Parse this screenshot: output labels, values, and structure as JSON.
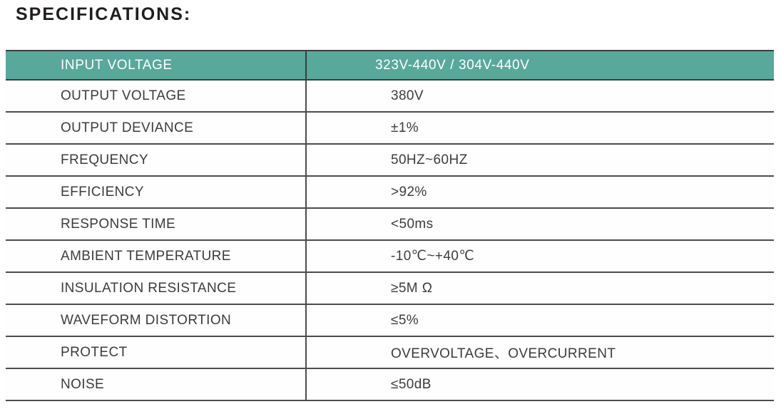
{
  "page": {
    "title": "SPECIFICATIONS:"
  },
  "table": {
    "header": {
      "label": "INPUT VOLTAGE",
      "value": "323V-440V / 304V-440V"
    },
    "rows": [
      {
        "label": "OUTPUT VOLTAGE",
        "value": "380V"
      },
      {
        "label": "OUTPUT DEVIANCE",
        "value": "±1%"
      },
      {
        "label": "FREQUENCY",
        "value": "50HZ~60HZ"
      },
      {
        "label": "EFFICIENCY",
        "value": ">92%"
      },
      {
        "label": "RESPONSE TIME",
        "value": "<50ms"
      },
      {
        "label": "AMBIENT TEMPERATURE",
        "value": "-10℃~+40℃"
      },
      {
        "label": "INSULATION RESISTANCE",
        "value": "≥5M Ω"
      },
      {
        "label": "WAVEFORM DISTORTION",
        "value": "≤5%"
      },
      {
        "label": "PROTECT",
        "value": "OVERVOLTAGE、OVERCURRENT"
      },
      {
        "label": "NOISE",
        "value": "≤50dB"
      }
    ],
    "colors": {
      "header_bg": "#58a89b",
      "header_text": "#ffffff",
      "line": "#4d4d4d",
      "text": "#3c3c3c"
    }
  }
}
